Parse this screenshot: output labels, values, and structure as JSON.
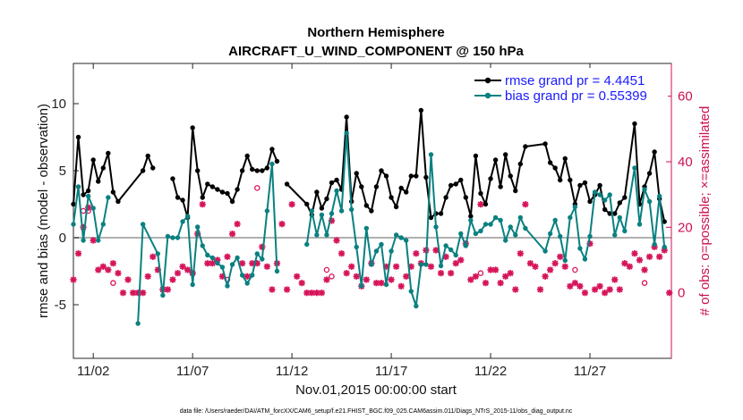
{
  "chart_data": {
    "type": "line",
    "title": "Northern Hemisphere",
    "subtitle": "AIRCRAFT_U_WIND_COMPONENT @ 150 hPa",
    "xlabel": "Nov.01,2015 00:00:00 start",
    "ylabel": "rmse and bias (model - observation)",
    "ylabel_right": "# of obs: o=possible; ×=assimilated",
    "footnote": "data file: /Users/raeder/DAI/ATM_forcXX/CAM6_setup/f.e21.FHIST_BGC.f09_025.CAM6assim.011/Diags_NTrS_2015-11/obs_diag_output.nc",
    "xlim": [
      0,
      30.1
    ],
    "ylim": [
      -9,
      13
    ],
    "ylim_right": [
      -20,
      70
    ],
    "x_ticks": [
      1,
      6,
      11,
      16,
      21,
      26
    ],
    "x_tick_labels": [
      "11/02",
      "11/07",
      "11/12",
      "11/17",
      "11/22",
      "11/27"
    ],
    "y_ticks": [
      -5,
      0,
      5,
      10
    ],
    "y_tick_labels": [
      "-5",
      "0",
      "5",
      "10"
    ],
    "y_ticks_right": [
      0,
      20,
      40,
      60
    ],
    "y_tick_labels_right": [
      "0",
      "20",
      "40",
      "60"
    ],
    "zero_line": 0,
    "colors": {
      "rmse": "#000000",
      "bias": "#0a8080",
      "obs": "#d6145a",
      "legend_text": "#1a1aff",
      "zero_line": "#b0b0b0",
      "right_axis": "#cc1155"
    },
    "legend": [
      {
        "name": "rmse grand pr = 4.4451",
        "series": "rmse"
      },
      {
        "name": "bias grand pr = 0.55399",
        "series": "bias"
      }
    ],
    "rmse": {
      "name": "rmse",
      "x": [
        0.0,
        0.25,
        0.5,
        0.75,
        1.0,
        1.25,
        1.5,
        1.75,
        2.0,
        2.25,
        3.5,
        3.75,
        4.0,
        4.25,
        4.5,
        4.75,
        5.0,
        5.25,
        5.5,
        5.75,
        6.0,
        6.25,
        6.5,
        6.75,
        7.0,
        7.25,
        7.5,
        7.75,
        8.0,
        8.25,
        8.5,
        8.75,
        9.0,
        9.25,
        9.5,
        9.75,
        10.0,
        10.25,
        10.5,
        10.75,
        11.75,
        12.0,
        12.25,
        12.5,
        12.75,
        13.0,
        13.25,
        13.5,
        13.75,
        14.0,
        14.25,
        14.5,
        14.75,
        15.0,
        15.25,
        15.5,
        15.75,
        16.0,
        16.25,
        16.5,
        16.75,
        17.0,
        17.25,
        17.5,
        17.75,
        18.0,
        18.25,
        18.5,
        18.75,
        19.0,
        19.25,
        19.5,
        19.75,
        20.0,
        20.25,
        20.5,
        20.75,
        21.0,
        21.25,
        21.5,
        21.75,
        22.0,
        22.25,
        22.5,
        22.75,
        23.75,
        24.0,
        24.25,
        24.5,
        24.75,
        25.0,
        25.25,
        25.5,
        25.75,
        26.0,
        26.25,
        26.5,
        26.75,
        27.0,
        27.25,
        27.5,
        27.75,
        28.25,
        28.5,
        28.75,
        29.0,
        29.25,
        29.5,
        29.75
      ],
      "values": [
        2.5,
        7.5,
        3.2,
        3.5,
        5.8,
        4.2,
        5.2,
        6.3,
        3.4,
        2.7,
        5.0,
        6.1,
        5.2,
        null,
        null,
        null,
        4.4,
        3.0,
        2.8,
        1.5,
        8.2,
        5.0,
        3.0,
        4.0,
        3.8,
        3.6,
        3.4,
        3.3,
        2.7,
        3.6,
        5.0,
        6.1,
        5.1,
        5.0,
        5.0,
        5.2,
        6.6,
        5.7,
        null,
        4.0,
        2.5,
        1.7,
        3.4,
        2.2,
        2.9,
        4.1,
        4.3,
        3.6,
        9.0,
        2.7,
        4.8,
        3.8,
        2.4,
        2.0,
        3.8,
        5.0,
        4.6,
        3.0,
        2.3,
        3.7,
        3.4,
        4.6,
        4.6,
        9.5,
        4.5,
        1.5,
        1.8,
        1.8,
        3.0,
        3.9,
        4.0,
        4.3,
        3.0,
        1.6,
        6.1,
        3.3,
        2.5,
        4.4,
        5.8,
        3.8,
        6.2,
        4.6,
        3.5,
        5.5,
        6.8,
        7.0,
        5.6,
        5.2,
        4.3,
        5.9,
        4.3,
        2.5,
        3.9,
        4.1,
        2.7,
        3.2,
        3.9,
        2.1,
        1.8,
        1.8,
        2.6,
        3.0,
        8.5,
        2.5,
        3.8,
        4.8,
        6.4,
        2.9,
        1.2
      ]
    },
    "bias": {
      "name": "bias",
      "x": [
        0.0,
        0.25,
        0.5,
        0.75,
        1.0,
        1.25,
        1.5,
        1.75,
        2.0,
        2.25,
        3.25,
        3.5,
        4.25,
        4.5,
        4.75,
        5.0,
        5.25,
        5.5,
        5.75,
        6.0,
        6.25,
        6.5,
        6.75,
        7.0,
        7.25,
        7.5,
        7.75,
        8.0,
        8.25,
        8.5,
        8.75,
        9.0,
        9.25,
        9.5,
        9.75,
        10.0,
        10.25,
        10.5,
        10.75,
        11.75,
        12.0,
        12.25,
        12.5,
        12.75,
        13.0,
        13.25,
        13.5,
        13.75,
        14.0,
        14.25,
        14.5,
        14.75,
        15.0,
        15.25,
        15.5,
        15.75,
        16.0,
        16.25,
        16.5,
        16.75,
        17.0,
        17.25,
        17.5,
        17.75,
        18.0,
        18.25,
        18.5,
        18.75,
        19.0,
        19.25,
        19.5,
        19.75,
        20.0,
        20.25,
        20.5,
        20.75,
        21.0,
        21.25,
        21.5,
        21.75,
        22.0,
        22.25,
        22.5,
        22.75,
        23.75,
        24.0,
        24.25,
        24.5,
        24.75,
        25.0,
        25.25,
        25.5,
        25.75,
        26.0,
        26.25,
        26.5,
        26.75,
        27.0,
        27.25,
        27.5,
        27.75,
        28.25,
        28.5,
        28.75,
        29.0,
        29.25,
        29.5,
        29.75
      ],
      "values": [
        1.0,
        3.8,
        -0.2,
        3.1,
        2.2,
        -0.2,
        1.0,
        3.0,
        null,
        null,
        -6.4,
        1.0,
        -1.2,
        -4.3,
        0.1,
        0.0,
        0.0,
        1.2,
        1.6,
        -3.5,
        0.8,
        -0.6,
        -1.3,
        -1.5,
        -1.9,
        -2.2,
        -3.6,
        -2.0,
        -1.5,
        -2.8,
        -3.4,
        -2.8,
        -1.2,
        -1.6,
        2.0,
        5.5,
        -2.5,
        null,
        null,
        -0.5,
        2.0,
        0.2,
        1.7,
        0.2,
        1.8,
        3.5,
        2.0,
        7.8,
        2.1,
        -0.7,
        -3.6,
        0.7,
        -2.0,
        -1.0,
        -0.5,
        -3.5,
        -1.0,
        0.2,
        0.0,
        -0.2,
        -4.0,
        -5.1,
        -2.0,
        -2.0,
        6.2,
        0.8,
        -2.1,
        -0.6,
        -0.9,
        -1.3,
        0.3,
        -0.6,
        1.3,
        0.3,
        0.5,
        1.0,
        1.0,
        1.5,
        1.3,
        -0.2,
        0.8,
        0.2,
        1.5,
        0.7,
        -1.0,
        0.3,
        1.3,
        0.1,
        -1.7,
        1.5,
        2.3,
        -0.8,
        -1.6,
        0.1,
        3.4,
        3.2,
        2.8,
        3.2,
        0.2,
        1.5,
        0.5,
        5.2,
        1.0,
        3.6,
        2.7,
        -0.5,
        3.1,
        -0.7
      ]
    },
    "obs_assimilated": {
      "name": "# obs assimilated",
      "marker": "asterisk",
      "x": [
        0.0,
        0.25,
        0.5,
        0.75,
        1.0,
        1.25,
        1.5,
        1.75,
        2.0,
        2.25,
        2.5,
        2.75,
        3.0,
        3.25,
        3.5,
        3.75,
        4.0,
        4.25,
        4.5,
        4.75,
        5.0,
        5.25,
        5.5,
        5.75,
        6.0,
        6.25,
        6.5,
        6.75,
        7.0,
        7.25,
        7.5,
        7.75,
        8.0,
        8.25,
        8.5,
        8.75,
        9.0,
        9.25,
        9.5,
        9.75,
        10.0,
        10.25,
        10.5,
        10.75,
        11.0,
        11.25,
        11.5,
        11.75,
        12.0,
        12.25,
        12.5,
        12.75,
        13.0,
        13.25,
        13.5,
        13.75,
        14.0,
        14.25,
        14.5,
        14.75,
        15.0,
        15.25,
        15.5,
        15.75,
        16.0,
        16.25,
        16.5,
        16.75,
        17.0,
        17.25,
        17.5,
        17.75,
        18.0,
        18.25,
        18.5,
        18.75,
        19.0,
        19.25,
        19.5,
        19.75,
        20.0,
        20.25,
        20.5,
        20.75,
        21.0,
        21.25,
        21.5,
        21.75,
        22.0,
        22.25,
        22.5,
        22.75,
        23.0,
        23.25,
        23.5,
        23.75,
        24.0,
        24.25,
        24.5,
        24.75,
        25.0,
        25.25,
        25.5,
        25.75,
        26.0,
        26.25,
        26.5,
        26.75,
        27.0,
        27.25,
        27.5,
        27.75,
        28.0,
        28.25,
        28.5,
        28.75,
        29.0,
        29.25,
        29.5,
        29.75,
        30.0
      ],
      "values": [
        4,
        12,
        20,
        26,
        16,
        7,
        8,
        7,
        9,
        6,
        0,
        4,
        0,
        0,
        0,
        5,
        11,
        7,
        1,
        1,
        4,
        6,
        8,
        7,
        6,
        18,
        27,
        9,
        9,
        10,
        5,
        11,
        18,
        21,
        9,
        5,
        9,
        9,
        14,
        8,
        1,
        9,
        21,
        1,
        27,
        5,
        3,
        0,
        0,
        0,
        0,
        4,
        22,
        16,
        12,
        6,
        8,
        5,
        2,
        4,
        9,
        3,
        3,
        8,
        4,
        8,
        2,
        5,
        8,
        12,
        9,
        13,
        8,
        13,
        6,
        11,
        6,
        9,
        10,
        15,
        4,
        5,
        27,
        3,
        7,
        7,
        3,
        5,
        6,
        1,
        12,
        27,
        9,
        8,
        1,
        5,
        7,
        9,
        11,
        8,
        2,
        3,
        2,
        0,
        15,
        1,
        2,
        0,
        1,
        4,
        1,
        9,
        8,
        12,
        10,
        7,
        11,
        14,
        11,
        13,
        0
      ]
    },
    "obs_possible": {
      "name": "# obs possible",
      "marker": "circle",
      "x": [
        0.5,
        0.75,
        2.0,
        6.0,
        7.75,
        9.25,
        12.75,
        13.0,
        20.5,
        25.25,
        28.75
      ],
      "values": [
        25,
        25,
        3,
        6,
        4,
        32,
        7,
        5,
        6,
        7,
        3
      ]
    }
  }
}
